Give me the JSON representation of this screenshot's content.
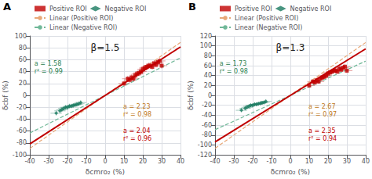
{
  "chart_data": [
    {
      "type": "scatter",
      "title": "A",
      "xlabel": "δcmro₂ (%)",
      "ylabel": "δcbf (%)",
      "xlim": [
        -40,
        40
      ],
      "xticks": [
        -40,
        -30,
        -20,
        -10,
        0,
        10,
        20,
        30,
        40
      ],
      "ylim": [
        -100,
        100
      ],
      "yticks": [
        -100,
        -80,
        -60,
        -40,
        -20,
        0,
        20,
        40,
        60,
        80,
        100
      ],
      "grid": true,
      "legend": "top",
      "series": [
        {
          "name": "Positive ROI",
          "type": "scatter",
          "marker": "square",
          "color": "#c00000",
          "x": [
            10,
            12,
            13,
            14,
            15,
            16,
            17,
            18,
            19,
            20,
            21,
            22,
            23,
            24,
            25,
            26,
            27,
            28,
            29,
            30
          ],
          "values": [
            20,
            28,
            26,
            30,
            28,
            34,
            36,
            38,
            40,
            44,
            46,
            48,
            50,
            50,
            48,
            54,
            52,
            56,
            58,
            50
          ],
          "xerr": 3.0,
          "yerr": 5.0
        },
        {
          "name": "Negative ROI",
          "type": "scatter",
          "marker": "diamond",
          "color": "#1a7a60",
          "x": [
            -26,
            -24,
            -23,
            -22,
            -21,
            -20,
            -19,
            -18,
            -17,
            -16,
            -15,
            -14,
            -13
          ],
          "values": [
            -30,
            -26,
            -24,
            -22,
            -20,
            -20,
            -18,
            -18,
            -17,
            -16,
            -15,
            -14,
            -12
          ],
          "xerr": 3.0,
          "yerr": 4.0
        },
        {
          "name": "Linear (Positive ROI)",
          "type": "line",
          "line_style": "dashed",
          "color": "#e8a878",
          "x": [
            -40,
            40
          ],
          "values": [
            -89.2,
            89.2
          ]
        },
        {
          "name": "Linear (Negative ROI)",
          "type": "line",
          "line_style": "dashed",
          "color": "#70b898",
          "x": [
            -40,
            40
          ],
          "values": [
            -63.2,
            63.2
          ]
        },
        {
          "type": "line",
          "line_style": "solid",
          "color": "#c00000",
          "x": [
            -40,
            40
          ],
          "values": [
            -81.6,
            81.6
          ]
        }
      ],
      "annotations": [
        {
          "text": "β=1.5"
        },
        {
          "text": "a = 2.23\nr² = 0.98",
          "color": "#c07820"
        },
        {
          "text": "a = 2.04\nr² = 0.96",
          "color": "#c00000"
        },
        {
          "text": "a = 1.58\nr² = 0.99",
          "color": "#2a8050"
        }
      ]
    },
    {
      "type": "scatter",
      "title": "B",
      "xlabel": "δcmro₂ (%)",
      "ylabel": "δcbf (%)",
      "xlim": [
        -40,
        40
      ],
      "xticks": [
        -40,
        -30,
        -20,
        -10,
        0,
        10,
        20,
        30,
        40
      ],
      "ylim": [
        -120,
        120
      ],
      "yticks": [
        -120,
        -100,
        -80,
        -60,
        -40,
        -20,
        0,
        20,
        40,
        60,
        80,
        100,
        120
      ],
      "grid": true,
      "legend": "top",
      "series": [
        {
          "name": "Positive ROI",
          "type": "scatter",
          "marker": "square",
          "color": "#c00000",
          "x": [
            10,
            12,
            13,
            14,
            15,
            16,
            17,
            18,
            19,
            20,
            21,
            22,
            23,
            24,
            25,
            26,
            27,
            28,
            29,
            30
          ],
          "values": [
            20,
            28,
            26,
            30,
            28,
            34,
            36,
            38,
            40,
            44,
            46,
            48,
            50,
            50,
            48,
            54,
            52,
            56,
            58,
            50
          ],
          "xerr": 3.0,
          "yerr": 5.0
        },
        {
          "name": "Negative ROI",
          "type": "scatter",
          "marker": "diamond",
          "color": "#1a7a60",
          "x": [
            -26,
            -24,
            -23,
            -22,
            -21,
            -20,
            -19,
            -18,
            -17,
            -16,
            -15,
            -14,
            -13
          ],
          "values": [
            -30,
            -26,
            -24,
            -22,
            -20,
            -20,
            -18,
            -18,
            -17,
            -16,
            -15,
            -14,
            -12
          ],
          "xerr": 3.0,
          "yerr": 4.0
        },
        {
          "name": "Linear (Positive ROI)",
          "type": "line",
          "line_style": "dashed",
          "color": "#e8a878",
          "x": [
            -40,
            40
          ],
          "values": [
            -106.8,
            106.8
          ]
        },
        {
          "name": "Linear (Negative ROI)",
          "type": "line",
          "line_style": "dashed",
          "color": "#70b898",
          "x": [
            -40,
            40
          ],
          "values": [
            -69.2,
            69.2
          ]
        },
        {
          "type": "line",
          "line_style": "solid",
          "color": "#c00000",
          "x": [
            -40,
            40
          ],
          "values": [
            -94,
            94
          ]
        }
      ],
      "annotations": [
        {
          "text": "β=1.3"
        },
        {
          "text": "a = 2.67\nr² = 0.97",
          "color": "#c07820"
        },
        {
          "text": "a = 2.35\nr² = 0.94",
          "color": "#c00000"
        },
        {
          "text": "a = 1.73\nr² = 0.98",
          "color": "#2a8050"
        }
      ]
    }
  ]
}
